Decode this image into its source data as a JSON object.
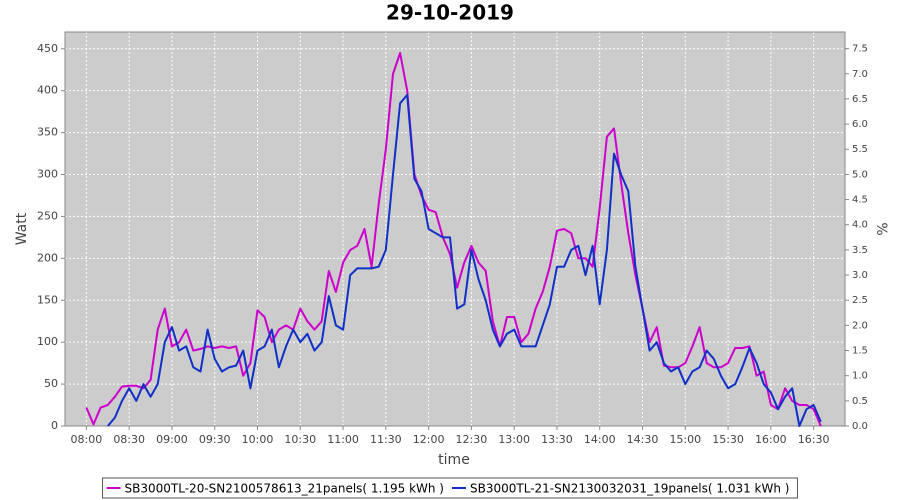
{
  "chart_data": {
    "type": "line",
    "title": "29-10-2019",
    "xlabel": "time",
    "ylabel": "Watt",
    "y2label": "%",
    "x": [
      "08:00",
      "08:05",
      "08:10",
      "08:15",
      "08:20",
      "08:25",
      "08:30",
      "08:35",
      "08:40",
      "08:45",
      "08:50",
      "08:55",
      "09:00",
      "09:05",
      "09:10",
      "09:15",
      "09:20",
      "09:25",
      "09:30",
      "09:35",
      "09:40",
      "09:45",
      "09:50",
      "09:55",
      "10:00",
      "10:05",
      "10:10",
      "10:15",
      "10:20",
      "10:25",
      "10:30",
      "10:35",
      "10:40",
      "10:45",
      "10:50",
      "10:55",
      "11:00",
      "11:05",
      "11:10",
      "11:15",
      "11:20",
      "11:25",
      "11:30",
      "11:35",
      "11:40",
      "11:45",
      "11:50",
      "11:55",
      "12:00",
      "12:05",
      "12:10",
      "12:15",
      "12:20",
      "12:25",
      "12:30",
      "12:35",
      "12:40",
      "12:45",
      "12:50",
      "12:55",
      "13:00",
      "13:05",
      "13:10",
      "13:15",
      "13:20",
      "13:25",
      "13:30",
      "13:35",
      "13:40",
      "13:45",
      "13:50",
      "13:55",
      "14:00",
      "14:05",
      "14:10",
      "14:15",
      "14:20",
      "14:25",
      "14:30",
      "14:35",
      "14:40",
      "14:45",
      "14:50",
      "14:55",
      "15:00",
      "15:05",
      "15:10",
      "15:15",
      "15:20",
      "15:25",
      "15:30",
      "15:35",
      "15:40",
      "15:45",
      "15:50",
      "15:55",
      "16:00",
      "16:05",
      "16:10",
      "16:15",
      "16:20",
      "16:25",
      "16:30",
      "16:35"
    ],
    "series": [
      {
        "name": "SB3000TL-20-SN2100578613_21panels( 1.195 kWh )",
        "color": "#cc00cc",
        "values": [
          22,
          2,
          22,
          25,
          35,
          47,
          48,
          48,
          45,
          55,
          115,
          140,
          95,
          100,
          115,
          90,
          92,
          95,
          93,
          95,
          93,
          95,
          60,
          75,
          138,
          130,
          100,
          115,
          120,
          115,
          140,
          125,
          115,
          125,
          185,
          160,
          195,
          210,
          215,
          235,
          190,
          265,
          330,
          420,
          445,
          400,
          300,
          275,
          258,
          255,
          225,
          205,
          165,
          195,
          215,
          195,
          185,
          125,
          95,
          130,
          130,
          100,
          110,
          140,
          160,
          190,
          233,
          235,
          230,
          200,
          200,
          190,
          260,
          345,
          355,
          290,
          230,
          180,
          140,
          100,
          118,
          72,
          70,
          70,
          75,
          95,
          118,
          75,
          70,
          70,
          75,
          93,
          93,
          95,
          60,
          65,
          25,
          20,
          45,
          30,
          25,
          25,
          20,
          0
        ]
      },
      {
        "name": "SB3000TL-21-SN2130032031_19panels( 1.031 kWh )",
        "color": "#1030c8",
        "values": [
          null,
          null,
          null,
          0,
          10,
          30,
          45,
          30,
          50,
          35,
          50,
          100,
          118,
          90,
          95,
          70,
          65,
          115,
          80,
          65,
          70,
          72,
          90,
          45,
          90,
          95,
          115,
          70,
          95,
          115,
          100,
          110,
          90,
          100,
          155,
          120,
          115,
          180,
          188,
          188,
          188,
          190,
          210,
          300,
          385,
          395,
          295,
          280,
          235,
          230,
          225,
          225,
          140,
          145,
          210,
          175,
          150,
          115,
          95,
          110,
          115,
          95,
          95,
          95,
          120,
          145,
          190,
          190,
          210,
          215,
          180,
          215,
          145,
          210,
          325,
          300,
          280,
          190,
          140,
          90,
          100,
          75,
          65,
          70,
          50,
          65,
          70,
          90,
          80,
          60,
          45,
          50,
          70,
          93,
          75,
          50,
          40,
          20,
          35,
          45,
          0,
          20,
          25,
          5
        ]
      }
    ],
    "xlim": [
      "07:45",
      "16:52"
    ],
    "xticks": [
      "08:00",
      "08:30",
      "09:00",
      "09:30",
      "10:00",
      "10:30",
      "11:00",
      "11:30",
      "12:00",
      "12:30",
      "13:00",
      "13:30",
      "14:00",
      "14:30",
      "15:00",
      "15:30",
      "16:00",
      "16:30"
    ],
    "ylim": [
      0,
      470
    ],
    "yticks": [
      0,
      50,
      100,
      150,
      200,
      250,
      300,
      350,
      400,
      450
    ],
    "y2lim": [
      0,
      7.83
    ],
    "y2ticks": [
      {
        "value": 0,
        "label": "0.0"
      },
      0.5,
      {
        "value": 1,
        "label": "1.0"
      },
      1.5,
      {
        "value": 2,
        "label": "2.0"
      },
      2.5,
      {
        "value": 3,
        "label": "3.0"
      },
      3.5,
      {
        "value": 4,
        "label": "4.0"
      },
      4.5,
      {
        "value": 5,
        "label": "5.0"
      },
      5.5,
      {
        "value": 6,
        "label": "6.0"
      },
      6.5,
      {
        "value": 7,
        "label": "7.0"
      },
      7.5
    ],
    "grid": true,
    "legend": "bottom"
  }
}
